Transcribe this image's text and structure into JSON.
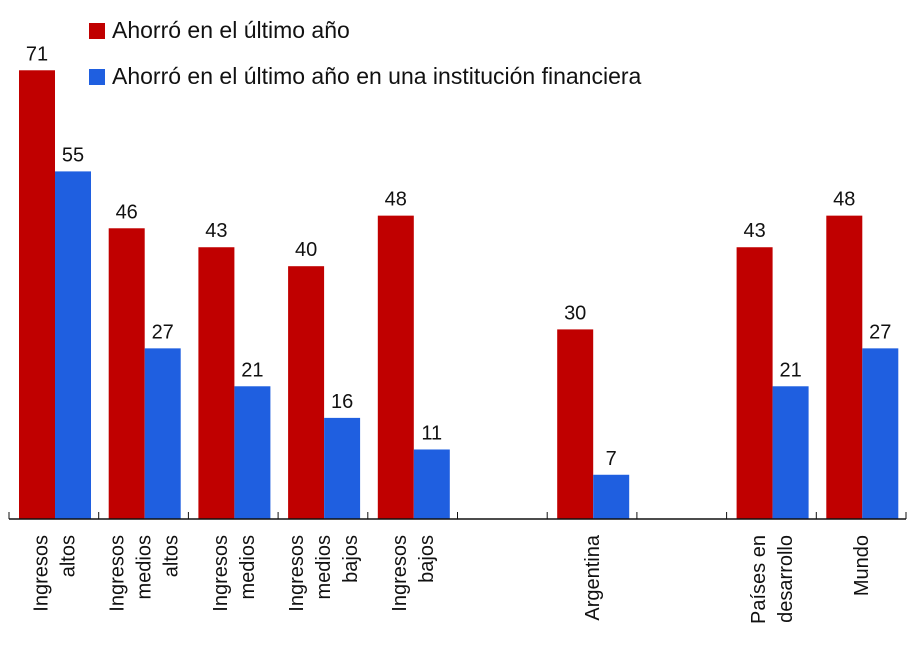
{
  "chart_data": {
    "type": "bar",
    "categories": [
      [
        "Ingresos",
        "altos"
      ],
      [
        "Ingresos",
        "medios",
        "altos"
      ],
      [
        "Ingresos",
        "medios"
      ],
      [
        "Ingresos",
        "medios",
        "bajos"
      ],
      [
        "Ingresos",
        "bajos"
      ],
      [],
      [
        "Argentina"
      ],
      [],
      [
        "Países en",
        "desarrollo"
      ],
      [
        "Mundo"
      ]
    ],
    "series": [
      {
        "name": "Ahorró en el último año",
        "color": "#c00000",
        "values": [
          71,
          46,
          43,
          40,
          48,
          null,
          30,
          null,
          43,
          48
        ]
      },
      {
        "name": "Ahorró en el último año en una institución financiera",
        "color": "#1f5fe0",
        "values": [
          55,
          27,
          21,
          16,
          11,
          null,
          7,
          null,
          21,
          27
        ]
      }
    ],
    "ylim": [
      0,
      75
    ],
    "grid": false,
    "legend": "top",
    "data_labels": true
  }
}
